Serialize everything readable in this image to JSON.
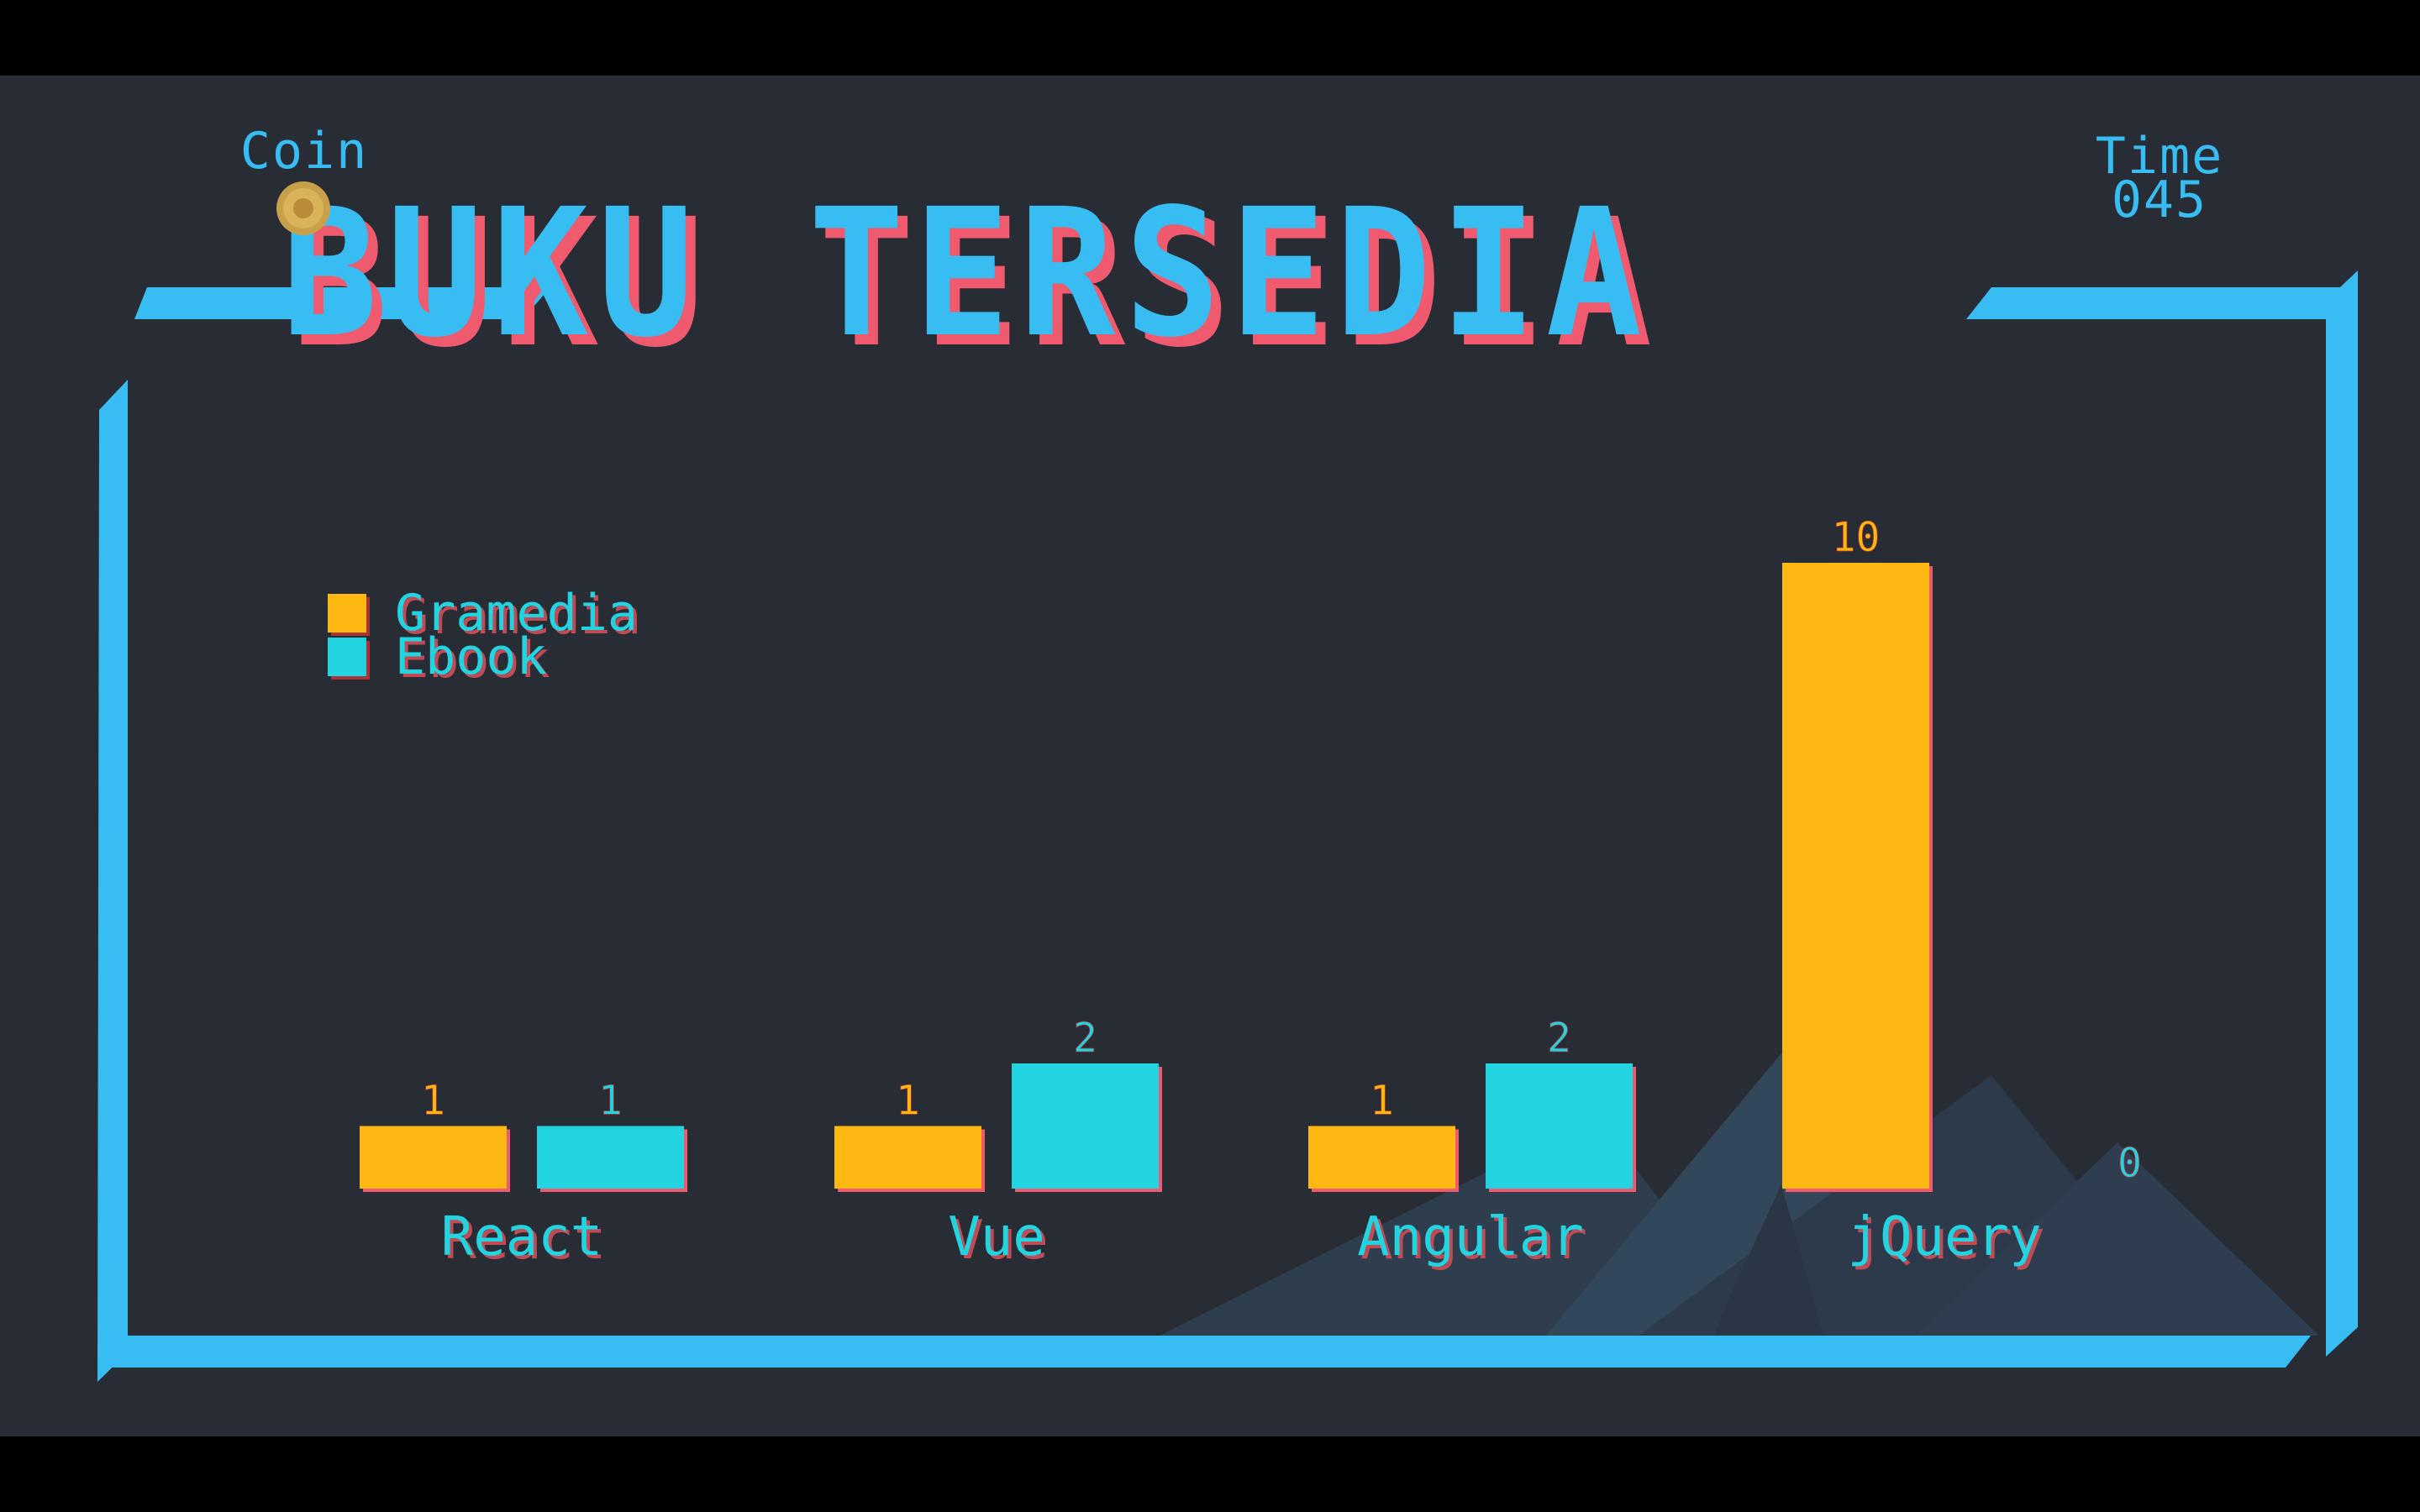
{
  "hud": {
    "coin_label": "Coin",
    "time_label": "Time",
    "time_value": "045"
  },
  "title": "BUKU TERSEDIA",
  "colors": {
    "background": "#282d35",
    "frame": "#38bdf2",
    "gramedia": "#fdb812",
    "ebook": "#22d3e0",
    "title_shadow": "#ef5a6f",
    "mountain": "#334555"
  },
  "chart_data": {
    "type": "bar",
    "categories": [
      "React",
      "Vue",
      "Angular",
      "jQuery"
    ],
    "series": [
      {
        "name": "Gramedia",
        "values": [
          1,
          1,
          1,
          10
        ]
      },
      {
        "name": "Ebook",
        "values": [
          1,
          2,
          2,
          0
        ]
      }
    ],
    "title": "BUKU TERSEDIA",
    "ylim": [
      0,
      10
    ],
    "grid": false,
    "legend": "top-left"
  }
}
